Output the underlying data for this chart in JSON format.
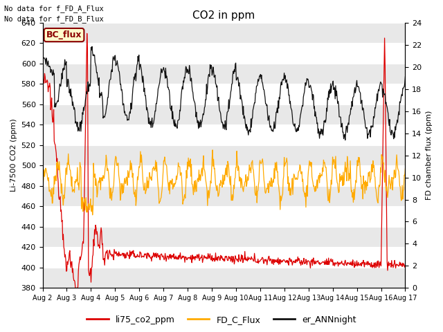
{
  "title": "CO2 in ppm",
  "ylabel_left": "Li-7500 CO2 (ppm)",
  "ylabel_right": "FD chamber flux (ppm)",
  "ylim_left": [
    380,
    640
  ],
  "ylim_right": [
    0,
    24
  ],
  "annotations": [
    "No data for f_FD_A_Flux",
    "No data for f_FD_B_Flux"
  ],
  "bc_flux_label": "BC_flux",
  "legend_labels": [
    "li75_co2_ppm",
    "FD_C_Flux",
    "er_ANNnight"
  ],
  "legend_colors": [
    "#dd0000",
    "#ffaa00",
    "#111111"
  ],
  "line_colors": {
    "li75": "#dd0000",
    "fd_c": "#ffaa00",
    "er_ann": "#111111"
  },
  "bg_color": "#ffffff",
  "stripe_color": "#e8e8e8",
  "xtick_labels": [
    "Aug 2",
    "Aug 3",
    "Aug 4",
    "Aug 5",
    "Aug 6",
    "Aug 7",
    "Aug 8",
    "Aug 9",
    "Aug 10",
    "Aug 11",
    "Aug 12",
    "Aug 13",
    "Aug 14",
    "Aug 15",
    "Aug 16",
    "Aug 17"
  ],
  "yticks_left": [
    380,
    400,
    420,
    440,
    460,
    480,
    500,
    520,
    540,
    560,
    580,
    600,
    620,
    640
  ],
  "yticks_right": [
    0,
    2,
    4,
    6,
    8,
    10,
    12,
    14,
    16,
    18,
    20,
    22,
    24
  ],
  "n_days": 15,
  "pts_per_day": 48
}
